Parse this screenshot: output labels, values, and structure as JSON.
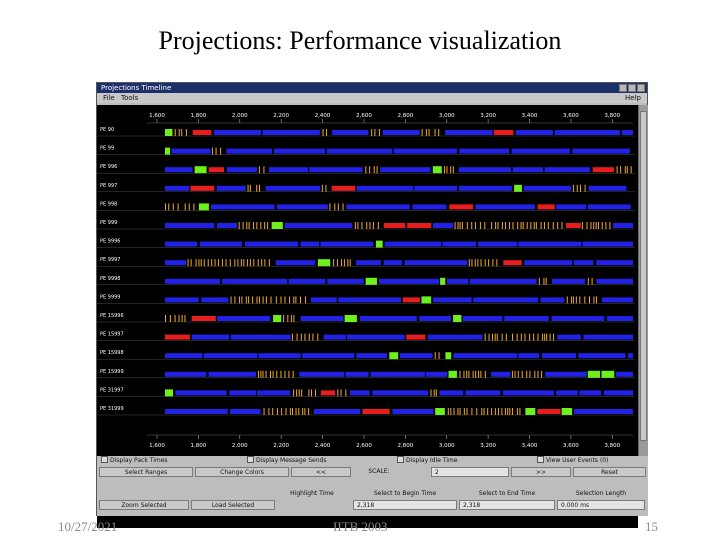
{
  "slide": {
    "title": "Projections: Performance visualization",
    "footer_date": "10/27/2021",
    "footer_center": "IITB 2003",
    "footer_page": "15"
  },
  "window": {
    "title": "Projections Timeline",
    "menu": {
      "file": "File",
      "tools": "Tools",
      "help": "Help"
    }
  },
  "timeline": {
    "axis_ticks": [
      "1,600",
      "1,800",
      "2,000",
      "2,200",
      "2,400",
      "2,600",
      "2,800",
      "3,000",
      "3,200",
      "3,400",
      "3,600",
      "3,800"
    ],
    "processors": [
      "PE 90",
      "PE 99",
      "PE 996",
      "PE 997",
      "PE 998",
      "PE 999",
      "PE 9996",
      "PE 9997",
      "PE 9998",
      "PE 9999",
      "PE 15996",
      "PE 15997",
      "PE 15998",
      "PE 15999",
      "PE 31997",
      "PE 31999"
    ],
    "colors": {
      "background": "#000000",
      "computation": "#2222e6",
      "highlight": "#6cf01e",
      "critical": "#e61e1e",
      "idle": "#f0a830",
      "row_line": "#4a4a4a",
      "axis_text": "#ffffff"
    }
  },
  "controls": {
    "row1": {
      "display_pack_times": "Display Pack Times",
      "display_message_sends": "Display Message Sends",
      "display_idle_time": "Display Idle Time",
      "view_user_events": "View User Events (0)"
    },
    "row2": {
      "select_ranges": "Select Ranges",
      "change_colors": "Change Colors",
      "prev": "<<",
      "scale_label": "SCALE:",
      "scale_value": "2",
      "next": ">>",
      "reset": "Reset"
    },
    "row3": {
      "highlight_time": "Highlight Time",
      "select_begin": "Select to Begin Time",
      "select_end": "Select to End Time",
      "selection_length": "Selection Length"
    },
    "row4": {
      "zoom_selected": "Zoom Selected",
      "load_selected": "Load Selected",
      "begin_value": "2,318",
      "end_value": "2,318",
      "length_value": "0.000 ms"
    }
  }
}
